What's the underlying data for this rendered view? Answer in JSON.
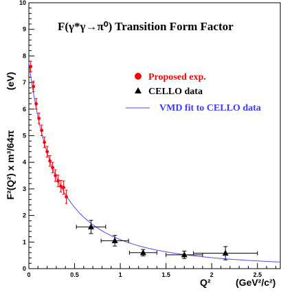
{
  "chart_data": {
    "type": "scatter",
    "title": "F(γ*γ→π⁰) Transition Form Factor",
    "xlabel": "Q²",
    "xunit": "(GeV²/c²)",
    "ylabel": "F²(Q²) x m³/64π",
    "yunit": "(eV)",
    "xlim": [
      0,
      2.75
    ],
    "ylim": [
      0,
      10
    ],
    "xticks": [
      {
        "value": 0,
        "label": "0"
      },
      {
        "value": 0.5,
        "label": "0.5"
      },
      {
        "value": 1,
        "label": "1"
      },
      {
        "value": 1.5,
        "label": "1.5"
      },
      {
        "value": 2,
        "label": "2"
      },
      {
        "value": 2.5,
        "label": "2.5"
      }
    ],
    "yticks": [
      {
        "value": 0,
        "label": "0"
      },
      {
        "value": 1,
        "label": "1"
      },
      {
        "value": 2,
        "label": "2"
      },
      {
        "value": 3,
        "label": "3"
      },
      {
        "value": 4,
        "label": "4"
      },
      {
        "value": 5,
        "label": "5"
      },
      {
        "value": 6,
        "label": "6"
      },
      {
        "value": 7,
        "label": "7"
      },
      {
        "value": 8,
        "label": "8"
      },
      {
        "value": 9,
        "label": "9"
      },
      {
        "value": 10,
        "label": "10"
      }
    ],
    "series": [
      {
        "name": "Proposed exp.",
        "marker": "circle",
        "color": "#ff0000",
        "points": [
          {
            "x": 0.02,
            "y": 7.6,
            "yerr": 0.2
          },
          {
            "x": 0.05,
            "y": 6.85,
            "yerr": 0.2
          },
          {
            "x": 0.08,
            "y": 6.2,
            "yerr": 0.2
          },
          {
            "x": 0.11,
            "y": 5.65,
            "yerr": 0.2
          },
          {
            "x": 0.14,
            "y": 5.2,
            "yerr": 0.2
          },
          {
            "x": 0.17,
            "y": 4.75,
            "yerr": 0.2
          },
          {
            "x": 0.2,
            "y": 4.4,
            "yerr": 0.2
          },
          {
            "x": 0.23,
            "y": 4.05,
            "yerr": 0.2
          },
          {
            "x": 0.26,
            "y": 3.8,
            "yerr": 0.2
          },
          {
            "x": 0.29,
            "y": 3.5,
            "yerr": 0.22
          },
          {
            "x": 0.32,
            "y": 3.3,
            "yerr": 0.22
          },
          {
            "x": 0.35,
            "y": 3.1,
            "yerr": 0.22
          },
          {
            "x": 0.38,
            "y": 3.05,
            "yerr": 0.25
          },
          {
            "x": 0.41,
            "y": 2.7,
            "yerr": 0.25
          }
        ]
      },
      {
        "name": "CELLO data",
        "marker": "triangle",
        "color": "#000000",
        "points": [
          {
            "x": 0.68,
            "y": 1.57,
            "yerr": 0.25,
            "xerr": 0.16
          },
          {
            "x": 0.94,
            "y": 1.05,
            "yerr": 0.2,
            "xerr": 0.15
          },
          {
            "x": 1.25,
            "y": 0.6,
            "yerr": 0.12,
            "xerr": 0.15
          },
          {
            "x": 1.7,
            "y": 0.52,
            "yerr": 0.14,
            "xerr": 0.2
          },
          {
            "x": 2.15,
            "y": 0.58,
            "yerr": 0.25,
            "xerr": 0.35
          }
        ]
      },
      {
        "name": "VMD fit to CELLO data",
        "type": "line",
        "color": "#4a4aff",
        "model": "F2(0)/(1+Q2/L2)^2",
        "F2_at_0": 7.75,
        "Lambda2": 0.6
      }
    ]
  }
}
